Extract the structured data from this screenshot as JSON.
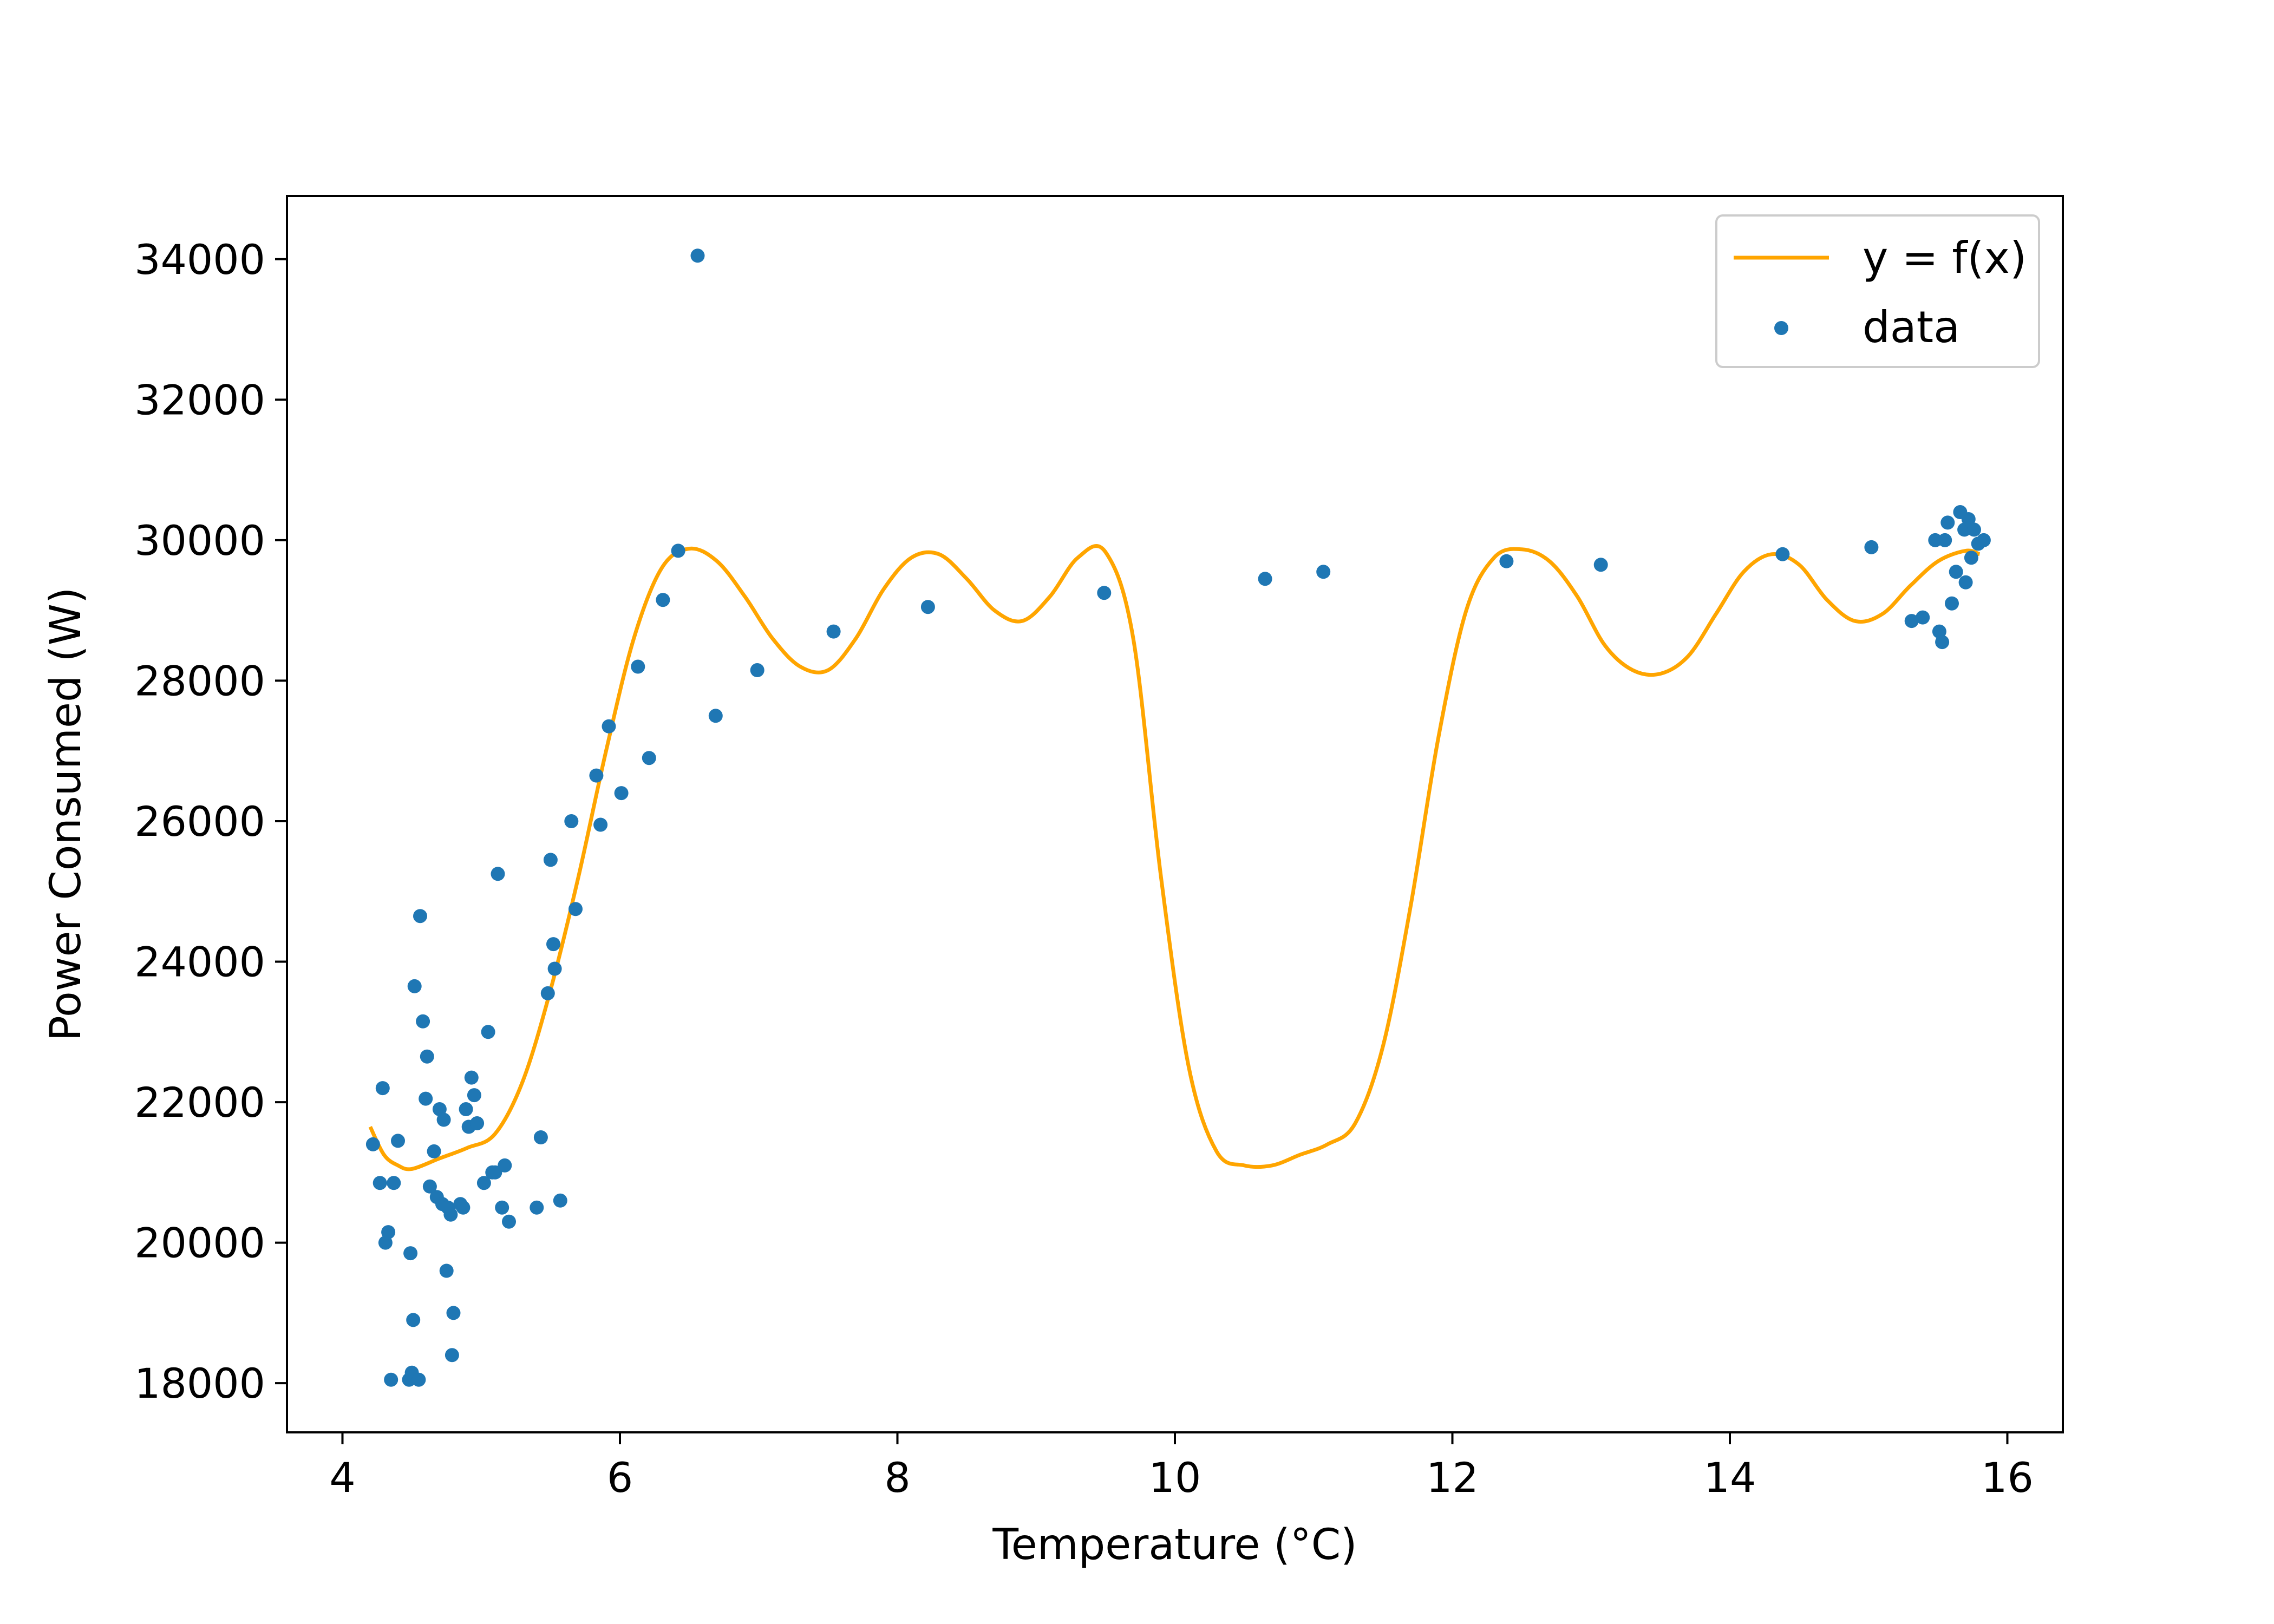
{
  "chart_data": {
    "type": "scatter",
    "xlabel": "Temperature (°C)",
    "ylabel": "Power Consumed (W)",
    "xlim": [
      3.6,
      16.4
    ],
    "ylim": [
      17300,
      34900
    ],
    "xticks": [
      4,
      6,
      8,
      10,
      12,
      14,
      16
    ],
    "yticks": [
      18000,
      20000,
      22000,
      24000,
      26000,
      28000,
      30000,
      32000,
      34000
    ],
    "grid": false,
    "legend_position": "top-right",
    "colors": {
      "curve": "#FFA500",
      "points": "#1f77b4"
    },
    "legend": [
      {
        "label": "y = f(x)",
        "kind": "line",
        "color": "#FFA500"
      },
      {
        "label": "data",
        "kind": "point",
        "color": "#1f77b4"
      }
    ],
    "series": [
      {
        "name": "y = f(x)",
        "type": "line",
        "x": [
          4.2,
          4.3,
          4.4,
          4.5,
          4.7,
          4.9,
          5.1,
          5.3,
          5.5,
          5.7,
          5.9,
          6.1,
          6.3,
          6.5,
          6.7,
          6.9,
          7.1,
          7.3,
          7.5,
          7.7,
          7.9,
          8.1,
          8.3,
          8.5,
          8.7,
          8.9,
          9.1,
          9.3,
          9.5,
          9.7,
          9.9,
          10.1,
          10.3,
          10.5,
          10.7,
          10.9,
          11.1,
          11.3,
          11.5,
          11.7,
          11.9,
          12.1,
          12.3,
          12.5,
          12.7,
          12.9,
          13.1,
          13.3,
          13.5,
          13.7,
          13.9,
          14.1,
          14.3,
          14.5,
          14.7,
          14.9,
          15.1,
          15.3,
          15.5,
          15.7,
          15.8
        ],
        "y": [
          21650,
          21250,
          21100,
          21050,
          21200,
          21350,
          21550,
          22300,
          23600,
          25200,
          27000,
          28600,
          29600,
          29880,
          29700,
          29200,
          28600,
          28200,
          28150,
          28600,
          29300,
          29750,
          29800,
          29450,
          29000,
          28850,
          29200,
          29750,
          29830,
          28600,
          25200,
          22500,
          21300,
          21100,
          21100,
          21250,
          21400,
          21700,
          22800,
          24800,
          27200,
          29000,
          29750,
          29870,
          29700,
          29200,
          28500,
          28150,
          28100,
          28350,
          28950,
          29550,
          29800,
          29650,
          29150,
          28850,
          28950,
          29350,
          29700,
          29850,
          29800
        ]
      },
      {
        "name": "data",
        "type": "scatter",
        "x": [
          4.22,
          4.27,
          4.29,
          4.31,
          4.33,
          4.35,
          4.37,
          4.4,
          4.48,
          4.49,
          4.5,
          4.51,
          4.52,
          4.55,
          4.56,
          4.58,
          4.6,
          4.61,
          4.63,
          4.66,
          4.68,
          4.7,
          4.72,
          4.73,
          4.75,
          4.76,
          4.78,
          4.79,
          4.8,
          4.85,
          4.87,
          4.89,
          4.91,
          4.93,
          4.95,
          4.97,
          5.02,
          5.05,
          5.08,
          5.1,
          5.12,
          5.15,
          5.17,
          5.2,
          5.4,
          5.43,
          5.48,
          5.5,
          5.52,
          5.53,
          5.57,
          5.65,
          5.68,
          5.83,
          5.86,
          5.92,
          6.01,
          6.13,
          6.21,
          6.31,
          6.42,
          6.56,
          6.69,
          6.99,
          7.54,
          8.22,
          9.49,
          10.65,
          11.07,
          12.39,
          13.07,
          14.38,
          15.02,
          15.31,
          15.39,
          15.48,
          15.51,
          15.53,
          15.55,
          15.57,
          15.6,
          15.63,
          15.66,
          15.69,
          15.7,
          15.72,
          15.74,
          15.76,
          15.79,
          15.83
        ],
        "y": [
          21400,
          20850,
          22200,
          20000,
          20150,
          18050,
          20850,
          21450,
          18050,
          19850,
          18150,
          18900,
          23650,
          18050,
          24650,
          23150,
          22050,
          22650,
          20800,
          21300,
          20650,
          21900,
          20550,
          21750,
          19600,
          20500,
          20400,
          18400,
          19000,
          20550,
          20500,
          21900,
          21650,
          22350,
          22100,
          21700,
          20850,
          23000,
          21000,
          21000,
          25250,
          20500,
          21100,
          20300,
          20500,
          21500,
          23550,
          25450,
          24250,
          23900,
          20600,
          26000,
          24750,
          26650,
          25950,
          27350,
          26400,
          28200,
          26900,
          29150,
          29850,
          34050,
          27500,
          28150,
          28700,
          29050,
          29250,
          29450,
          29550,
          29700,
          29650,
          29800,
          29900,
          28850,
          28900,
          30000,
          28700,
          28550,
          30000,
          30250,
          29100,
          29550,
          30400,
          30150,
          29400,
          30300,
          29750,
          30150,
          29950,
          30000
        ]
      }
    ]
  }
}
